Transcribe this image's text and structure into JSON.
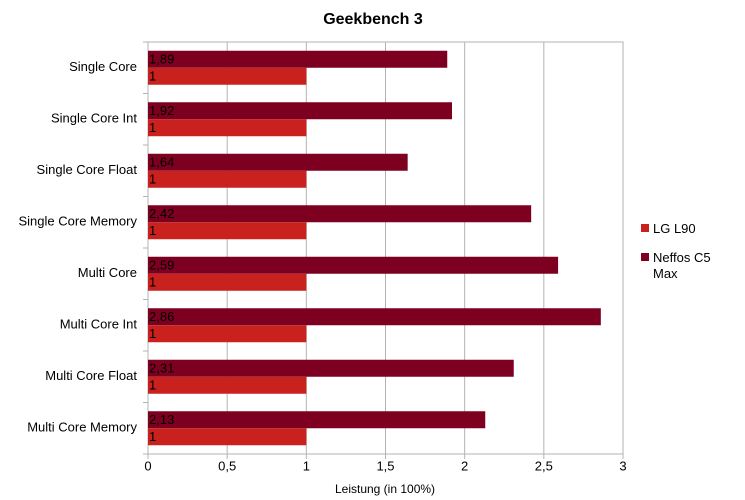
{
  "chart_data": {
    "type": "bar",
    "orientation": "horizontal",
    "title": "Geekbench 3",
    "x_label": "Leistung (in 100%)",
    "categories": [
      "Single Core",
      "Single Core Int",
      "Single Core Float",
      "Single Core Memory",
      "Multi Core",
      "Multi Core Int",
      "Multi Core Float",
      "Multi Core Memory"
    ],
    "series": [
      {
        "name": "LG L90",
        "color": "#c9211e",
        "values": [
          1,
          1,
          1,
          1,
          1,
          1,
          1,
          1
        ]
      },
      {
        "name": "Neffos C5 Max",
        "color": "#7e0021",
        "values": [
          1.89,
          1.92,
          1.64,
          2.42,
          2.59,
          2.86,
          2.31,
          2.13
        ],
        "value_labels": [
          "1,89",
          "1,92",
          "1,64",
          "2,42",
          "2,59",
          "2,86",
          "2,31",
          "2,13"
        ]
      }
    ],
    "xlim": [
      0,
      3
    ],
    "xticks": [
      0,
      {
        "value": 0.5,
        "label": "0,5"
      },
      1,
      {
        "value": 1.5,
        "label": "1,5"
      },
      2,
      {
        "value": 2.5,
        "label": "2,5"
      },
      3
    ],
    "grid": true,
    "legend": "right"
  }
}
